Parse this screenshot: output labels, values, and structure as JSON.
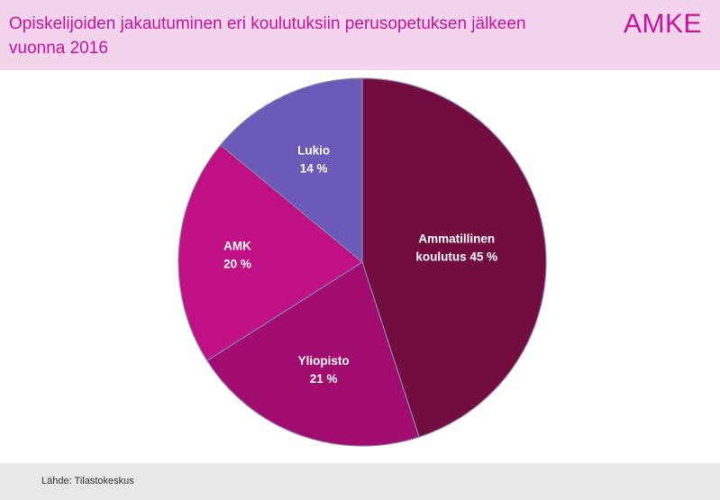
{
  "header": {
    "title": "Opiskelijoiden jakautuminen eri koulutuksiin perusopetuksen jälkeen vuonna 2016",
    "logo": "AMKE"
  },
  "footer": {
    "source": "Lähde: Tilastokeskus"
  },
  "colors": {
    "header_bg": "#f4d3ec",
    "accent": "#c4149a",
    "footer_bg": "#e8e8e8"
  },
  "chart_data": {
    "type": "pie",
    "title": "Opiskelijoiden jakautuminen eri koulutuksiin perusopetuksen jälkeen vuonna 2016",
    "start": "12 o'clock, clockwise",
    "legend": "none",
    "slices": [
      {
        "label": [
          "Ammatillinen",
          "koulutus 45 %"
        ],
        "value": 45,
        "color": "#730c3f"
      },
      {
        "label": [
          "Yliopisto",
          "21 %"
        ],
        "value": 21,
        "color": "#a10c6e"
      },
      {
        "label": [
          "AMK",
          "20 %"
        ],
        "value": 20,
        "color": "#c10f86"
      },
      {
        "label": [
          "Lukio",
          "14 %"
        ],
        "value": 14,
        "color": "#6b5ab8"
      }
    ]
  }
}
